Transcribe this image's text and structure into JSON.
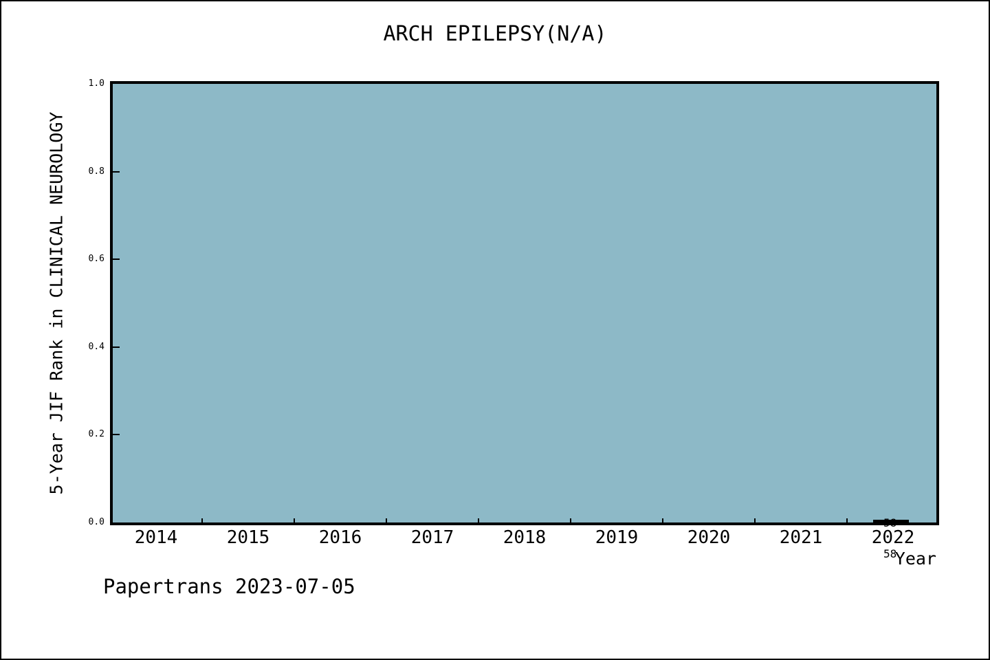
{
  "chart_data": {
    "type": "line",
    "title": "ARCH EPILEPSY(N/A)",
    "xlabel": "Year",
    "ylabel": "5-Year JIF Rank in CLINICAL NEUROLOGY",
    "categories": [
      "2014",
      "2015",
      "2016",
      "2017",
      "2018",
      "2019",
      "2020",
      "2021",
      "2022"
    ],
    "yticks": [
      "0.0",
      "0.2",
      "0.4",
      "0.6",
      "0.8",
      "1.0"
    ],
    "ylim": [
      0.0,
      1.0
    ],
    "grid": false,
    "legend": "none",
    "plot_bg_color": "#8db9c7",
    "line_color": "#000000",
    "series": [
      {
        "name": "5-Year JIF Rank in CLINICAL NEUROLOGY",
        "points": [
          {
            "x": "2022",
            "rank": 58,
            "out_of": 58,
            "y_plotted": 0.0
          }
        ]
      }
    ],
    "annotations": [
      {
        "x": "2022",
        "line1": "58",
        "line2": "58"
      }
    ]
  },
  "footer": {
    "label": "Papertrans 2023-07-05"
  }
}
